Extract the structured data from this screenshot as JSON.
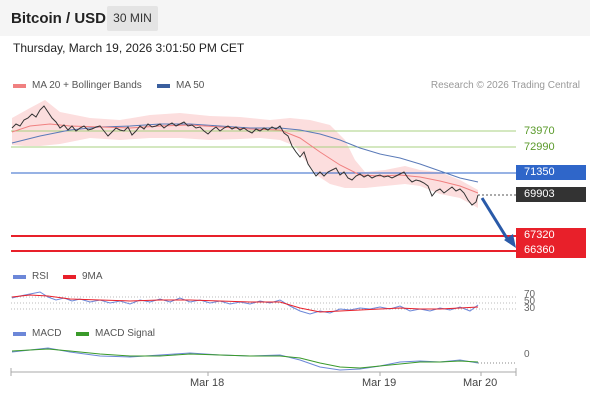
{
  "header": {
    "title": "Bitcoin / USD",
    "timeframe": "30 MIN"
  },
  "timestamp": "Thursday, March 19, 2026 3:01:50 PM CET",
  "legend": {
    "ma20": "MA 20 + Bollinger Bands",
    "ma50": "MA 50",
    "credit": "Research © 2026 Trading Central"
  },
  "colors": {
    "ma20": "#f08080",
    "ma50": "#3a5f9e",
    "band": "#fbd9d9",
    "resistance": "#8fbf5a",
    "pivot": "#2f66c9",
    "support": "#e8202a",
    "price": "#333333",
    "arrow": "#2a5aa8",
    "rsi": "#6c87d8",
    "rsi_ma": "#e8202a",
    "macd": "#6c87d8",
    "macd_signal": "#3a9a2a"
  },
  "levels": {
    "r2": "73970",
    "r1": "72990",
    "pivot": "71350",
    "last": "69903",
    "s1": "67320",
    "s2": "66360"
  },
  "rsi": {
    "label": "RSI",
    "ma_label": "9MA",
    "ticks": [
      "70",
      "50",
      "30"
    ]
  },
  "macd": {
    "label": "MACD",
    "signal_label": "MACD Signal",
    "tick": "0"
  },
  "x_axis": [
    "Mar 18",
    "Mar 19",
    "Mar 20"
  ]
}
